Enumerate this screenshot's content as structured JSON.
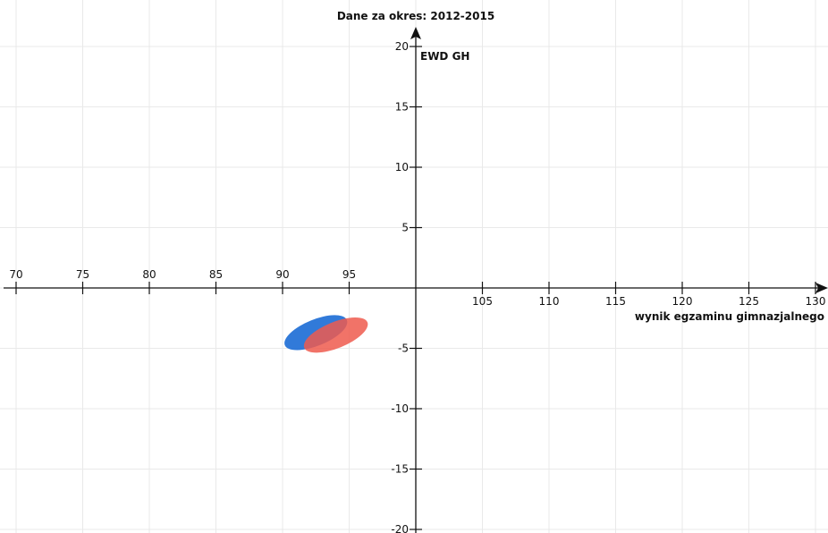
{
  "chart_data": {
    "type": "scatter",
    "title": "Dane za okres: 2012-2015",
    "xlabel": "wynik egzaminu gimnazjalnego",
    "ylabel": "EWD GH",
    "xlim": [
      70,
      130
    ],
    "ylim": [
      -20,
      20
    ],
    "x_ticks": [
      70,
      75,
      80,
      85,
      90,
      95,
      105,
      110,
      115,
      120,
      125,
      130
    ],
    "y_ticks": [
      20,
      15,
      10,
      5,
      -5,
      -10,
      -15,
      -20
    ],
    "x_tick_labels": [
      "70",
      "75",
      "80",
      "85",
      "90",
      "95",
      "105",
      "110",
      "115",
      "120",
      "125",
      "130"
    ],
    "y_tick_labels": [
      "20",
      "15",
      "10",
      "5",
      "-5",
      "-10",
      "-15",
      "-20"
    ],
    "grid": true,
    "series": [
      {
        "color": "#1f6fd6",
        "shape": "ellipse",
        "center": [
          92.5,
          -3.7
        ],
        "x_range": [
          89.8,
          95.2
        ],
        "y_range": [
          -5.5,
          -2.0
        ],
        "rotation_deg": -22,
        "opacity": 0.92
      },
      {
        "color": "#ef5a4e",
        "shape": "ellipse",
        "center": [
          94.0,
          -3.9
        ],
        "x_range": [
          91.3,
          96.8
        ],
        "y_range": [
          -5.7,
          -2.2
        ],
        "rotation_deg": -22,
        "opacity": 0.85
      }
    ]
  }
}
